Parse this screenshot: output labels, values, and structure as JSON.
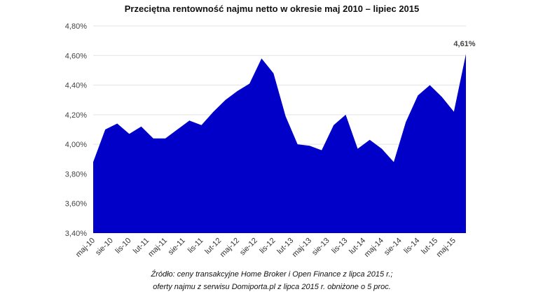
{
  "chart_data": {
    "type": "area",
    "title": "Przeciętna rentowność najmu netto w okresie maj 2010 – lipiec 2015",
    "xlabel": "",
    "ylabel": "",
    "ylim": [
      3.4,
      4.8
    ],
    "y_ticks": [
      "3,40%",
      "3,60%",
      "3,80%",
      "4,00%",
      "4,20%",
      "4,40%",
      "4,60%",
      "4,80%"
    ],
    "y_tick_values": [
      3.4,
      3.6,
      3.8,
      4.0,
      4.2,
      4.4,
      4.6,
      4.8
    ],
    "x_tick_labels": [
      "maj-10",
      "sie-10",
      "lis-10",
      "lut-11",
      "maj-11",
      "sie-11",
      "lis-11",
      "lut-12",
      "maj-12",
      "sie-12",
      "lis-12",
      "lut-13",
      "maj-13",
      "sie-13",
      "lis-13",
      "lut-14",
      "maj-14",
      "sie-14",
      "lis-14",
      "lut-15",
      "maj-15"
    ],
    "x_tick_dates": [
      "2010-05",
      "2010-08",
      "2010-11",
      "2011-02",
      "2011-05",
      "2011-08",
      "2011-11",
      "2012-02",
      "2012-05",
      "2012-08",
      "2012-11",
      "2013-02",
      "2013-05",
      "2013-08",
      "2013-11",
      "2014-02",
      "2014-05",
      "2014-08",
      "2014-11",
      "2015-02",
      "2015-05"
    ],
    "x": [
      "2010-05",
      "2010-07",
      "2010-09",
      "2010-11",
      "2011-01",
      "2011-03",
      "2011-05",
      "2011-07",
      "2011-09",
      "2011-11",
      "2012-01",
      "2012-03",
      "2012-05",
      "2012-07",
      "2012-09",
      "2012-11",
      "2013-01",
      "2013-03",
      "2013-05",
      "2013-07",
      "2013-09",
      "2013-11",
      "2014-01",
      "2014-03",
      "2014-05",
      "2014-07",
      "2014-09",
      "2014-11",
      "2015-01",
      "2015-03",
      "2015-05",
      "2015-07"
    ],
    "values": [
      3.88,
      4.1,
      4.14,
      4.07,
      4.12,
      4.04,
      4.04,
      4.1,
      4.16,
      4.13,
      4.22,
      4.3,
      4.36,
      4.41,
      4.58,
      4.48,
      4.19,
      4.0,
      3.99,
      3.96,
      4.13,
      4.2,
      3.97,
      4.03,
      3.97,
      3.88,
      4.15,
      4.33,
      4.4,
      4.32,
      4.22,
      4.61
    ],
    "data_labels": [
      {
        "x": "2015-07",
        "text": "4,61%"
      }
    ],
    "grid": true,
    "legend": "none",
    "color": "#0000C8",
    "grid_color": "#e3e3e3"
  },
  "source_note": {
    "line1": "Źródło: ceny transakcyjne Home Broker i Open Finance z lipca 2015 r.;",
    "line2": "oferty najmu z serwisu Domiporta.pl z lipca 2015 r. obniżone o 5 proc."
  }
}
